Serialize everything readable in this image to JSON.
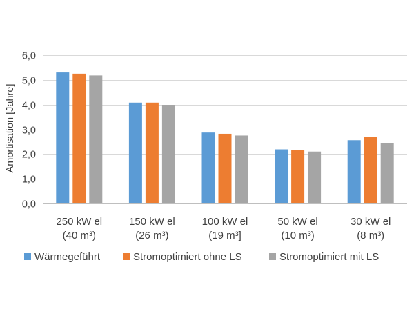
{
  "chart_data": {
    "type": "bar",
    "categories": [
      [
        "250 kW el",
        "(40 m³)"
      ],
      [
        "150 kW el",
        "(26 m³)"
      ],
      [
        "100 kW el",
        "(19 m³]"
      ],
      [
        "50 kW el",
        "(10 m³)"
      ],
      [
        "30 kW el",
        "(8 m³)"
      ]
    ],
    "series": [
      {
        "name": "Wärmegeführt",
        "color": "#5B9BD5",
        "values": [
          5.3,
          4.08,
          2.87,
          2.19,
          2.56
        ]
      },
      {
        "name": "Stromoptimiert ohne LS",
        "color": "#ED7D31",
        "values": [
          5.25,
          4.08,
          2.82,
          2.17,
          2.68
        ]
      },
      {
        "name": "Stromoptimiert mit LS",
        "color": "#A5A5A5",
        "values": [
          5.18,
          3.99,
          2.75,
          2.1,
          2.44
        ]
      }
    ],
    "ylabel": "Amortisation [Jahre]",
    "ylim": [
      0,
      6
    ],
    "ytick_values": [
      0,
      1,
      2,
      3,
      4,
      5,
      6
    ],
    "ytick_labels": [
      "0,0",
      "1,0",
      "2,0",
      "3,0",
      "4,0",
      "5,0",
      "6,0"
    ],
    "grid": true,
    "legend_position": "bottom"
  }
}
